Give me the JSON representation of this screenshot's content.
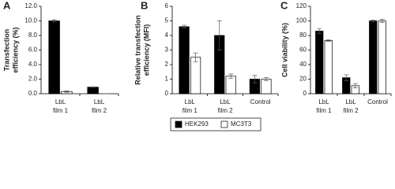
{
  "chart_data": [
    {
      "type": "bar",
      "panel": "A",
      "ylabel": [
        "Transfection",
        "efficiency (%)"
      ],
      "categories": [
        "LbL film 1",
        "LbL film 2"
      ],
      "series": [
        {
          "name": "HEK293",
          "color": "#000000",
          "values": [
            10.0,
            0.9
          ],
          "errors": [
            0.15,
            0.05
          ]
        },
        {
          "name": "MC3T3",
          "color": "#ffffff",
          "values": [
            0.3,
            0
          ],
          "errors": [
            0.1,
            0
          ]
        }
      ],
      "ylim": [
        0,
        12
      ],
      "yticks": [
        {
          "value": 0,
          "label": "0.0"
        },
        {
          "value": 2,
          "label": "2.0"
        },
        {
          "value": 4,
          "label": "4.0"
        },
        {
          "value": 6,
          "label": "6.0"
        },
        {
          "value": 8,
          "label": "8.0"
        },
        {
          "value": 10,
          "label": "10.0"
        },
        {
          "value": 12,
          "label": "12.0"
        }
      ]
    },
    {
      "type": "bar",
      "panel": "B",
      "ylabel": [
        "Relative transfection",
        "efficiency (MFI)"
      ],
      "categories": [
        "LbL film 1",
        "LbL film 2",
        "Control"
      ],
      "series": [
        {
          "name": "HEK293",
          "color": "#000000",
          "values": [
            4.6,
            4.0,
            1.0
          ],
          "errors": [
            0.1,
            1.0,
            0.25
          ]
        },
        {
          "name": "MC3T3",
          "color": "#ffffff",
          "values": [
            2.5,
            1.2,
            1.0
          ],
          "errors": [
            0.3,
            0.15,
            0.1
          ]
        }
      ],
      "ylim": [
        0,
        6
      ],
      "yticks": [
        0,
        1,
        2,
        3,
        4,
        5,
        6
      ]
    },
    {
      "type": "bar",
      "panel": "C",
      "ylabel": [
        "Cell viability (%)"
      ],
      "categories": [
        "LbL film 1",
        "LbL film 2",
        "Control"
      ],
      "series": [
        {
          "name": "HEK293",
          "color": "#000000",
          "values": [
            86,
            22,
            100
          ],
          "errors": [
            3,
            4,
            1
          ]
        },
        {
          "name": "MC3T3",
          "color": "#ffffff",
          "values": [
            73,
            11,
            100
          ],
          "errors": [
            1,
            3,
            2
          ]
        }
      ],
      "ylim": [
        0,
        120
      ],
      "yticks": [
        0,
        20,
        40,
        60,
        80,
        100,
        120
      ]
    }
  ]
}
